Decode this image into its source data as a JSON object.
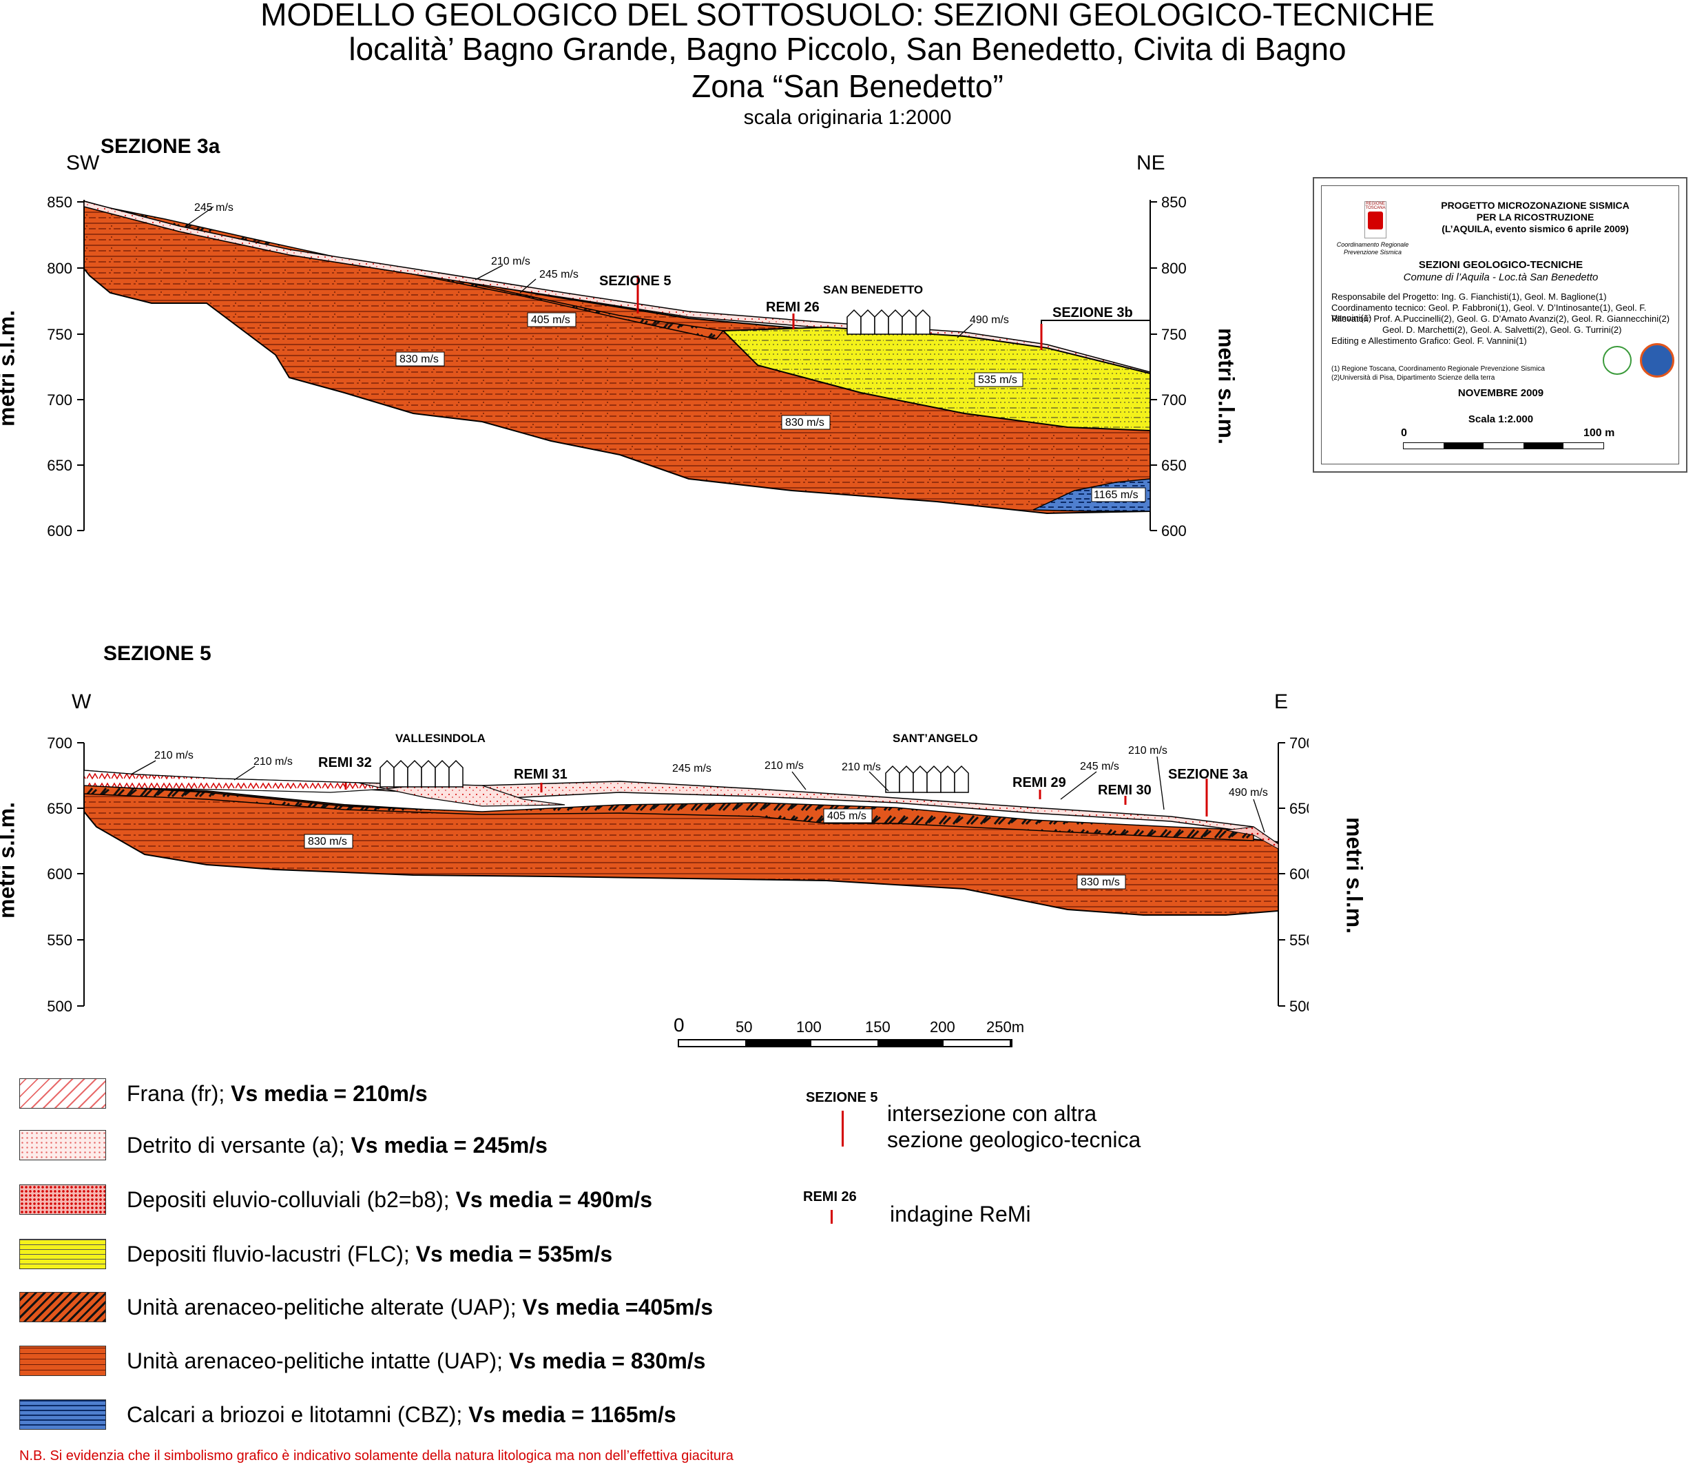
{
  "title": {
    "line1": "MODELLO GEOLOGICO DEL SOTTOSUOLO: SEZIONI GEOLOGICO-TECNICHE",
    "line2": "località’ Bagno Grande, Bagno Piccolo, San Benedetto, Civita di Bagno",
    "line3": "Zona “San Benedetto”",
    "scale": "scala originaria 1:2000"
  },
  "section3a": {
    "name": "SEZIONE 3a",
    "left_dir": "SW",
    "right_dir": "NE",
    "ylabel": "metri s.l.m.",
    "ticks": [
      "850",
      "800",
      "750",
      "700",
      "650",
      "600"
    ],
    "labels": {
      "v245a": "245 m/s",
      "v210": "210 m/s",
      "v245b": "245 m/s",
      "v405": "405 m/s",
      "v830a": "830 m/s",
      "v830b": "830 m/s",
      "v490": "490 m/s",
      "v535": "535 m/s",
      "v1165": "1165 m/s",
      "sez5": "SEZIONE 5",
      "remi26": "REMI 26",
      "sanbenedetto": "SAN BENEDETTO",
      "sez3b": "SEZIONE 3b"
    }
  },
  "section5": {
    "name": "SEZIONE 5",
    "left_dir": "W",
    "right_dir": "E",
    "ylabel": "metri s.l.m.",
    "ticks": [
      "700",
      "650",
      "600",
      "550",
      "500"
    ],
    "labels": {
      "v210a": "210 m/s",
      "v210b": "210 m/s",
      "remi32": "REMI 32",
      "vallesindola": "VALLESINDOLA",
      "remi31": "REMI 31",
      "v245": "245 m/s",
      "v210c": "210 m/s",
      "v210d": "210 m/s",
      "santangelo": "SANT’ANGELO",
      "v405": "405 m/s",
      "remi29": "REMI 29",
      "v245b": "245 m/s",
      "v210e": "210 m/s",
      "remi30": "REMI 30",
      "sez3a": "SEZIONE 3a",
      "v490": "490 m/s",
      "v830a": "830 m/s",
      "v830b": "830 m/s"
    }
  },
  "scalebar": {
    "labels": [
      "0",
      "50",
      "100",
      "150",
      "200",
      "250m"
    ]
  },
  "legend": {
    "items": [
      {
        "text": "Frana (fr); ",
        "bold": "Vs media = 210m/s"
      },
      {
        "text": "Detrito di versante (a); ",
        "bold": "Vs media = 245m/s"
      },
      {
        "text": "Depositi eluvio-colluviali (b2=b8); ",
        "bold": "Vs media = 490m/s"
      },
      {
        "text": "Depositi fluvio-lacustri (FLC); ",
        "bold": "Vs media = 535m/s"
      },
      {
        "text": "Unità arenaceo-pelitiche  alterate (UAP); ",
        "bold": "Vs media =405m/s"
      },
      {
        "text": "Unità arenaceo-pelitiche  intatte (UAP); ",
        "bold": "Vs media = 830m/s"
      },
      {
        "text": "Calcari a briozoi e litotamni (CBZ); ",
        "bold": "Vs media = 1165m/s"
      }
    ],
    "sym1_tag": "SEZIONE 5",
    "sym1_text1": "intersezione con altra",
    "sym1_text2": "sezione geologico-tecnica",
    "sym2_tag": "REMI 26",
    "sym2_text": "indagine ReMi"
  },
  "note": "N.B. Si evidenzia che il simbolismo grafico è indicativo solamente della natura litologica ma non dell’effettiva giacitura",
  "titleblock": {
    "logo_text1": "REGIONE",
    "logo_text2": "TOSCANA",
    "coord1": "Coordinamento Regionale",
    "coord2": "Prevenzione Sismica",
    "proj1": "PROGETTO MICROZONAZIONE SISMICA",
    "proj2": "PER LA RICOSTRUZIONE",
    "proj3": "(L’AQUILA, evento sismico 6 aprile 2009)",
    "heading": "SEZIONI GEOLOGICO-TECNICHE",
    "subheading": "Comune di l’Aquila - Loc.tà San Benedetto",
    "credits": [
      "Responsabile del Progetto: Ing. G. Fianchisti(1), Geol. M. Baglione(1)",
      "Coordinamento tecnico: Geol. P. Fabbroni(1), Geol. V. D’Intinosante(1), Geol. F. Vannini(1)",
      "Rilevatori: Prof. A.Puccinelli(2), Geol. G. D’Amato Avanzi(2), Geol. R. Giannecchini(2)",
      "Geol. D. Marchetti(2), Geol. A. Salvetti(2), Geol. G. Turrini(2)",
      "Editing e Allestimento Grafico:  Geol. F. Vannini(1)"
    ],
    "notes": [
      "(1) Regione Toscana, Coordinamento Regionale Prevenzione Sismica",
      "(2)Università di Pisa, Dipartimento Scienze della terra"
    ],
    "date": "NOVEMBRE 2009",
    "scale": "Scala 1:2.000",
    "bar_left": "0",
    "bar_right": "100 m"
  },
  "colors": {
    "orange": "#e2561c",
    "yellow": "#f4f21a",
    "blue": "#4f7fcf",
    "pink": "#f6b7b2",
    "red": "#d40000"
  }
}
